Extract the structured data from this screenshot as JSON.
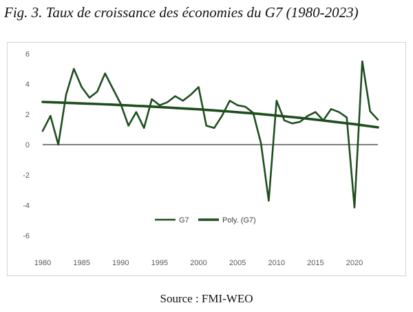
{
  "figure": {
    "title": "Fig. 3. Taux de croissance des économies du G7 (1980-2023)",
    "source": "Source : FMI-WEO"
  },
  "colors": {
    "series": "#1e4d1e",
    "zero_line": "#7f7f7f",
    "axis_text": "#595959"
  },
  "chart_data": {
    "type": "line",
    "title": "",
    "xlabel": "",
    "ylabel": "",
    "xlim": [
      1980,
      2023
    ],
    "ylim": [
      -6,
      6
    ],
    "x_ticks": [
      1980,
      1985,
      1990,
      1995,
      2000,
      2005,
      2010,
      2015,
      2020
    ],
    "y_ticks": [
      -6,
      -4,
      -2,
      0,
      2,
      4,
      6
    ],
    "grid": false,
    "legend_position": "bottom-center",
    "x": [
      1980,
      1981,
      1982,
      1983,
      1984,
      1985,
      1986,
      1987,
      1988,
      1989,
      1990,
      1991,
      1992,
      1993,
      1994,
      1995,
      1996,
      1997,
      1998,
      1999,
      2000,
      2001,
      2002,
      2003,
      2004,
      2005,
      2006,
      2007,
      2008,
      2009,
      2010,
      2011,
      2012,
      2013,
      2014,
      2015,
      2016,
      2017,
      2018,
      2019,
      2020,
      2021,
      2022,
      2023
    ],
    "series": [
      {
        "name": "G7",
        "values": [
          0.9,
          1.9,
          0.0,
          3.3,
          5.0,
          3.8,
          3.1,
          3.5,
          4.7,
          3.7,
          2.7,
          1.25,
          2.15,
          1.1,
          3.0,
          2.6,
          2.8,
          3.2,
          2.9,
          3.3,
          3.8,
          1.25,
          1.1,
          1.9,
          2.9,
          2.6,
          2.5,
          2.1,
          0.1,
          -3.7,
          2.9,
          1.6,
          1.4,
          1.5,
          1.9,
          2.15,
          1.6,
          2.35,
          2.15,
          1.8,
          -4.15,
          5.5,
          2.2,
          1.65
        ]
      },
      {
        "name": "Poly. (G7)",
        "values": [
          2.82,
          2.8,
          2.78,
          2.76,
          2.74,
          2.72,
          2.7,
          2.68,
          2.66,
          2.64,
          2.61,
          2.59,
          2.56,
          2.54,
          2.51,
          2.48,
          2.45,
          2.42,
          2.39,
          2.36,
          2.33,
          2.29,
          2.26,
          2.22,
          2.18,
          2.14,
          2.1,
          2.06,
          2.02,
          1.97,
          1.92,
          1.87,
          1.82,
          1.77,
          1.71,
          1.65,
          1.59,
          1.53,
          1.47,
          1.41,
          1.35,
          1.28,
          1.21,
          1.14
        ]
      }
    ]
  }
}
